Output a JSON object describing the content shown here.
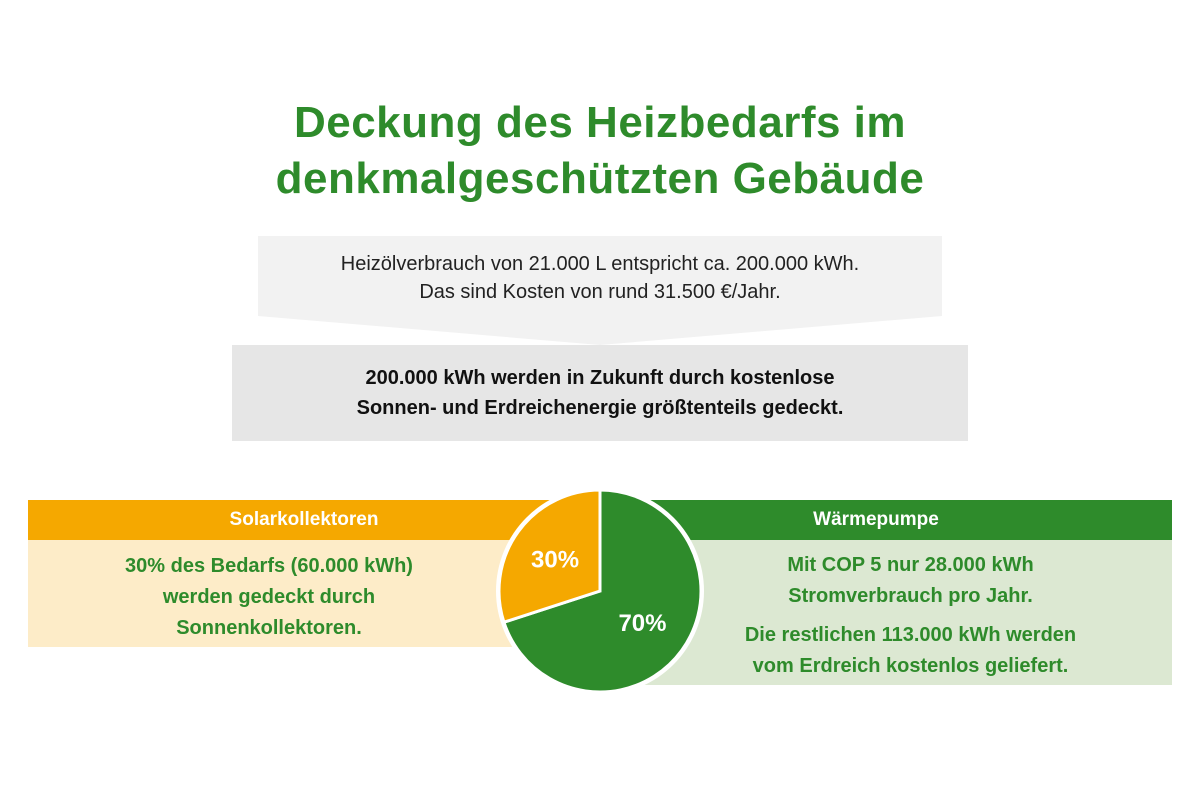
{
  "title": {
    "line1": "Deckung des Heizbedarfs im",
    "line2": "denkmalgeschützten Gebäude"
  },
  "info": {
    "line1": "Heizölverbrauch von 21.000 L entspricht ca. 200.000 kWh.",
    "line2": "Das sind Kosten von rund 31.500 €/Jahr."
  },
  "summary": {
    "line1": "200.000 kWh werden in Zukunft durch kostenlose",
    "line2": "Sonnen- und Erdreichenergie größtenteils gedeckt."
  },
  "solar": {
    "header": "Solarkollektoren",
    "line1": "30% des Bedarfs (60.000 kWh)",
    "line2": "werden gedeckt durch",
    "line3": "Sonnenkollektoren."
  },
  "heatpump": {
    "header": "Wärmepumpe",
    "line1": "Mit COP 5 nur 28.000 kWh",
    "line2": "Stromverbrauch pro Jahr.",
    "line3": "Die restlichen 113.000 kWh werden",
    "line4": "vom Erdreich kostenlos geliefert."
  },
  "colors": {
    "green": "#2e8b2b",
    "orange": "#f5a800",
    "light_orange": "#fdecc8",
    "light_green": "#dce8d2",
    "light_gray": "#f2f2f2",
    "mid_gray": "#e6e6e6"
  },
  "chart_data": {
    "type": "pie",
    "slices": [
      {
        "label": "30%",
        "value": 30,
        "color": "#f5a800"
      },
      {
        "label": "70%",
        "value": 70,
        "color": "#2e8b2b"
      }
    ]
  }
}
